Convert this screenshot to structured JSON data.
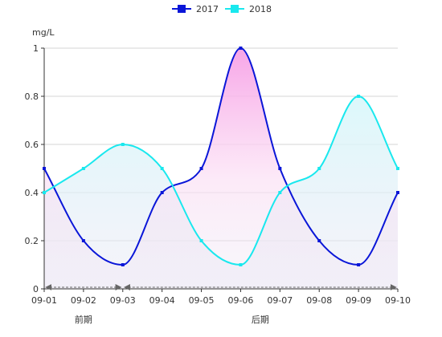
{
  "chart_data": {
    "type": "line",
    "smooth": true,
    "categories": [
      "09-01",
      "09-02",
      "09-03",
      "09-04",
      "09-05",
      "09-06",
      "09-07",
      "09-08",
      "09-09",
      "09-10"
    ],
    "series": [
      {
        "name": "2017",
        "color": "#0a16d8",
        "values": [
          0.5,
          0.2,
          0.1,
          0.4,
          0.5,
          1.0,
          0.5,
          0.2,
          0.1,
          0.4
        ]
      },
      {
        "name": "2018",
        "color": "#19e8ee",
        "values": [
          0.4,
          0.5,
          0.6,
          0.5,
          0.2,
          0.1,
          0.4,
          0.5,
          0.8,
          0.5
        ]
      }
    ],
    "ylabel": "mg/L",
    "ylim": [
      0,
      1
    ],
    "yticks": [
      "0",
      "0.2",
      "0.4",
      "0.6",
      "0.8",
      "1"
    ],
    "grid": true,
    "legend": "top-center",
    "area_fill_colors": {
      "top": "#f7a0e6",
      "bottom": "#ece6f3"
    },
    "regions": [
      {
        "label": "前期",
        "from": "09-01",
        "to": "09-03"
      },
      {
        "label": "后期",
        "from": "09-03",
        "to": "09-10"
      }
    ]
  }
}
